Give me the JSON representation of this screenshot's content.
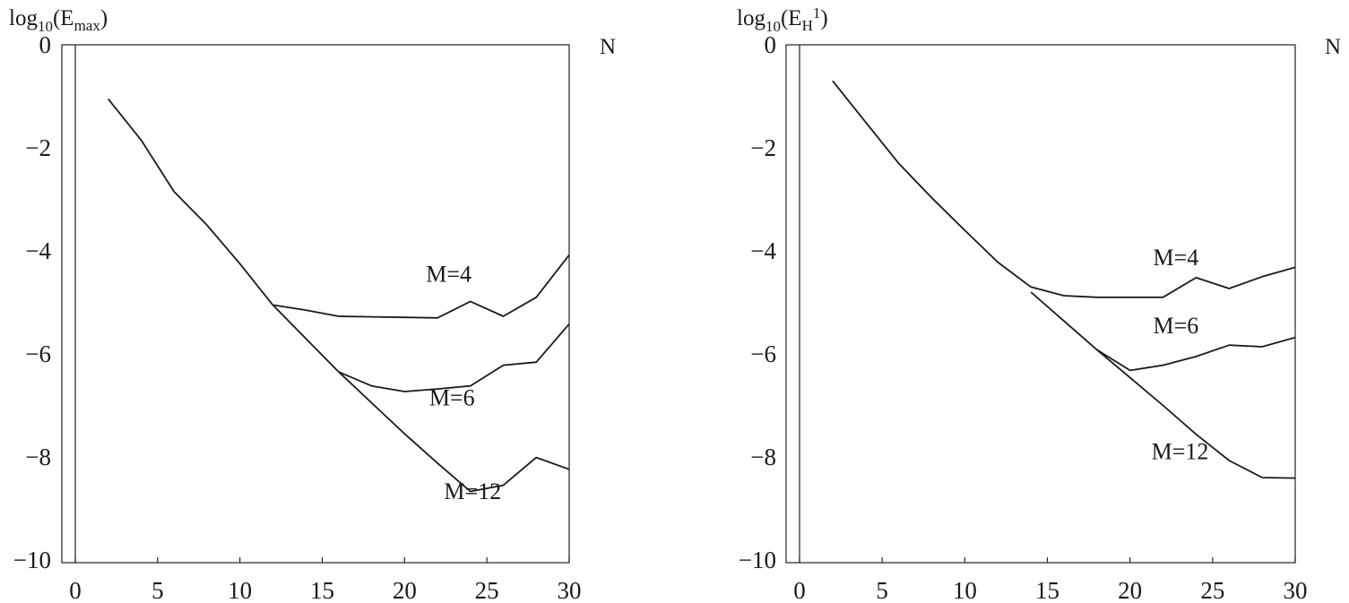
{
  "chart_data": [
    {
      "type": "line",
      "ylabel": {
        "prefix": "log",
        "sub": "10",
        "open": "(E",
        "sub2": "max",
        "close": ")"
      },
      "xlabel": "N",
      "xlim": [
        0,
        30
      ],
      "ylim": [
        -10,
        0
      ],
      "xticks": [
        "0",
        "5",
        "10",
        "15",
        "20",
        "25",
        "30"
      ],
      "yticks": [
        "0",
        "−2",
        "−4",
        "−6",
        "−8",
        "−10"
      ],
      "series": [
        {
          "name": "M=4",
          "x": [
            2,
            4,
            6,
            8,
            10,
            12,
            14,
            16,
            18,
            20,
            22,
            24,
            26,
            28,
            30
          ],
          "y": [
            -1.05,
            -1.85,
            -2.85,
            -3.5,
            -4.25,
            -5.05,
            -5.15,
            -5.27,
            -5.28,
            -5.29,
            -5.3,
            -4.98,
            -5.27,
            -4.9,
            -4.08
          ]
        },
        {
          "name": "M=6",
          "x": [
            12,
            14,
            16,
            18,
            20,
            22,
            24,
            26,
            28,
            30
          ],
          "y": [
            -5.05,
            -5.7,
            -6.35,
            -6.62,
            -6.73,
            -6.68,
            -6.62,
            -6.22,
            -6.16,
            -5.42
          ]
        },
        {
          "name": "M=12",
          "x": [
            16,
            18,
            20,
            22,
            24,
            26,
            28,
            30
          ],
          "y": [
            -6.35,
            -6.95,
            -7.55,
            -8.12,
            -8.67,
            -8.55,
            -8.01,
            -8.24
          ]
        }
      ],
      "annotations": [
        {
          "text": "M=4",
          "x": 21.3,
          "y": -4.6
        },
        {
          "text": "M=6",
          "x": 21.5,
          "y": -7.0
        },
        {
          "text": "M=12",
          "x": 22.4,
          "y": -8.82
        }
      ]
    },
    {
      "type": "line",
      "ylabel": {
        "prefix": "log",
        "sub": "10",
        "open": "(E",
        "sub2": "H",
        "sup": "1",
        "close": ")"
      },
      "xlabel": "N",
      "xlim": [
        0,
        30
      ],
      "ylim": [
        -10,
        0
      ],
      "xticks": [
        "0",
        "5",
        "10",
        "15",
        "20",
        "25",
        "30"
      ],
      "yticks": [
        "0",
        "−2",
        "−4",
        "−6",
        "−8",
        "−10"
      ],
      "series": [
        {
          "name": "M=4",
          "x": [
            2,
            4,
            6,
            8,
            10,
            12,
            14,
            16,
            18,
            20,
            22,
            24,
            26,
            28,
            30
          ],
          "y": [
            -0.7,
            -1.5,
            -2.3,
            -2.97,
            -3.6,
            -4.22,
            -4.7,
            -4.87,
            -4.9,
            -4.9,
            -4.9,
            -4.52,
            -4.73,
            -4.5,
            -4.32
          ]
        },
        {
          "name": "M=6",
          "x": [
            14,
            16,
            18,
            20,
            22,
            24,
            26,
            28,
            30
          ],
          "y": [
            -4.8,
            -5.36,
            -5.92,
            -6.32,
            -6.22,
            -6.05,
            -5.83,
            -5.86,
            -5.68
          ]
        },
        {
          "name": "M=12",
          "x": [
            18,
            20,
            22,
            24,
            26,
            28,
            30
          ],
          "y": [
            -5.92,
            -6.46,
            -7.0,
            -7.56,
            -8.07,
            -8.4,
            -8.41
          ]
        }
      ],
      "annotations": [
        {
          "text": "M=4",
          "x": 21.4,
          "y": -4.28
        },
        {
          "text": "M=6",
          "x": 21.4,
          "y": -5.6
        },
        {
          "text": "M=12",
          "x": 21.3,
          "y": -8.04
        }
      ]
    }
  ]
}
